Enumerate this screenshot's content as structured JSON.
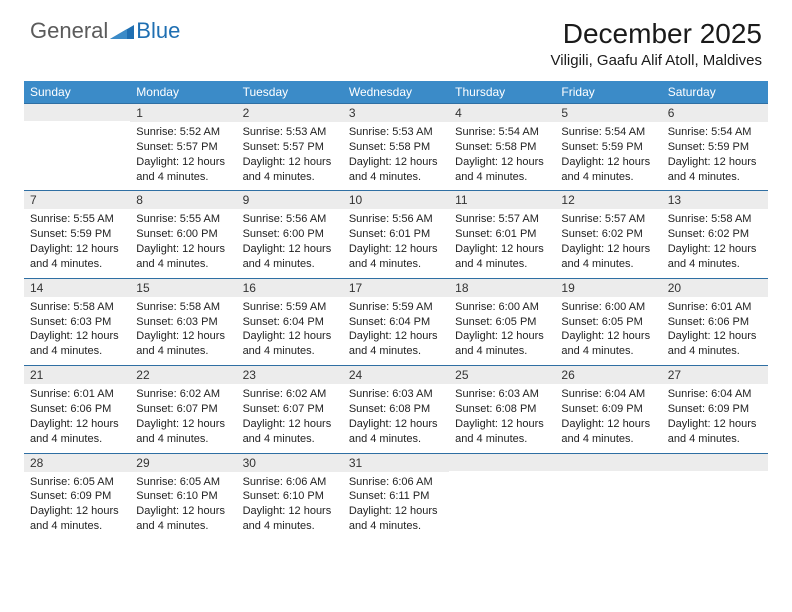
{
  "logo": {
    "general": "General",
    "blue": "Blue"
  },
  "title": "December 2025",
  "location": "Viligili, Gaafu Alif Atoll, Maldives",
  "colors": {
    "header_bg": "#3b8bc8",
    "header_text": "#ffffff",
    "daynum_bg": "#ececec",
    "border": "#2f6fa3",
    "body_text": "#222222",
    "logo_general": "#5b5b5b",
    "logo_blue": "#1f6fb2"
  },
  "weekdays": [
    "Sunday",
    "Monday",
    "Tuesday",
    "Wednesday",
    "Thursday",
    "Friday",
    "Saturday"
  ],
  "weeks": [
    [
      {
        "day": "",
        "sunrise": "",
        "sunset": "",
        "daylight": ""
      },
      {
        "day": "1",
        "sunrise": "Sunrise: 5:52 AM",
        "sunset": "Sunset: 5:57 PM",
        "daylight": "Daylight: 12 hours and 4 minutes."
      },
      {
        "day": "2",
        "sunrise": "Sunrise: 5:53 AM",
        "sunset": "Sunset: 5:57 PM",
        "daylight": "Daylight: 12 hours and 4 minutes."
      },
      {
        "day": "3",
        "sunrise": "Sunrise: 5:53 AM",
        "sunset": "Sunset: 5:58 PM",
        "daylight": "Daylight: 12 hours and 4 minutes."
      },
      {
        "day": "4",
        "sunrise": "Sunrise: 5:54 AM",
        "sunset": "Sunset: 5:58 PM",
        "daylight": "Daylight: 12 hours and 4 minutes."
      },
      {
        "day": "5",
        "sunrise": "Sunrise: 5:54 AM",
        "sunset": "Sunset: 5:59 PM",
        "daylight": "Daylight: 12 hours and 4 minutes."
      },
      {
        "day": "6",
        "sunrise": "Sunrise: 5:54 AM",
        "sunset": "Sunset: 5:59 PM",
        "daylight": "Daylight: 12 hours and 4 minutes."
      }
    ],
    [
      {
        "day": "7",
        "sunrise": "Sunrise: 5:55 AM",
        "sunset": "Sunset: 5:59 PM",
        "daylight": "Daylight: 12 hours and 4 minutes."
      },
      {
        "day": "8",
        "sunrise": "Sunrise: 5:55 AM",
        "sunset": "Sunset: 6:00 PM",
        "daylight": "Daylight: 12 hours and 4 minutes."
      },
      {
        "day": "9",
        "sunrise": "Sunrise: 5:56 AM",
        "sunset": "Sunset: 6:00 PM",
        "daylight": "Daylight: 12 hours and 4 minutes."
      },
      {
        "day": "10",
        "sunrise": "Sunrise: 5:56 AM",
        "sunset": "Sunset: 6:01 PM",
        "daylight": "Daylight: 12 hours and 4 minutes."
      },
      {
        "day": "11",
        "sunrise": "Sunrise: 5:57 AM",
        "sunset": "Sunset: 6:01 PM",
        "daylight": "Daylight: 12 hours and 4 minutes."
      },
      {
        "day": "12",
        "sunrise": "Sunrise: 5:57 AM",
        "sunset": "Sunset: 6:02 PM",
        "daylight": "Daylight: 12 hours and 4 minutes."
      },
      {
        "day": "13",
        "sunrise": "Sunrise: 5:58 AM",
        "sunset": "Sunset: 6:02 PM",
        "daylight": "Daylight: 12 hours and 4 minutes."
      }
    ],
    [
      {
        "day": "14",
        "sunrise": "Sunrise: 5:58 AM",
        "sunset": "Sunset: 6:03 PM",
        "daylight": "Daylight: 12 hours and 4 minutes."
      },
      {
        "day": "15",
        "sunrise": "Sunrise: 5:58 AM",
        "sunset": "Sunset: 6:03 PM",
        "daylight": "Daylight: 12 hours and 4 minutes."
      },
      {
        "day": "16",
        "sunrise": "Sunrise: 5:59 AM",
        "sunset": "Sunset: 6:04 PM",
        "daylight": "Daylight: 12 hours and 4 minutes."
      },
      {
        "day": "17",
        "sunrise": "Sunrise: 5:59 AM",
        "sunset": "Sunset: 6:04 PM",
        "daylight": "Daylight: 12 hours and 4 minutes."
      },
      {
        "day": "18",
        "sunrise": "Sunrise: 6:00 AM",
        "sunset": "Sunset: 6:05 PM",
        "daylight": "Daylight: 12 hours and 4 minutes."
      },
      {
        "day": "19",
        "sunrise": "Sunrise: 6:00 AM",
        "sunset": "Sunset: 6:05 PM",
        "daylight": "Daylight: 12 hours and 4 minutes."
      },
      {
        "day": "20",
        "sunrise": "Sunrise: 6:01 AM",
        "sunset": "Sunset: 6:06 PM",
        "daylight": "Daylight: 12 hours and 4 minutes."
      }
    ],
    [
      {
        "day": "21",
        "sunrise": "Sunrise: 6:01 AM",
        "sunset": "Sunset: 6:06 PM",
        "daylight": "Daylight: 12 hours and 4 minutes."
      },
      {
        "day": "22",
        "sunrise": "Sunrise: 6:02 AM",
        "sunset": "Sunset: 6:07 PM",
        "daylight": "Daylight: 12 hours and 4 minutes."
      },
      {
        "day": "23",
        "sunrise": "Sunrise: 6:02 AM",
        "sunset": "Sunset: 6:07 PM",
        "daylight": "Daylight: 12 hours and 4 minutes."
      },
      {
        "day": "24",
        "sunrise": "Sunrise: 6:03 AM",
        "sunset": "Sunset: 6:08 PM",
        "daylight": "Daylight: 12 hours and 4 minutes."
      },
      {
        "day": "25",
        "sunrise": "Sunrise: 6:03 AM",
        "sunset": "Sunset: 6:08 PM",
        "daylight": "Daylight: 12 hours and 4 minutes."
      },
      {
        "day": "26",
        "sunrise": "Sunrise: 6:04 AM",
        "sunset": "Sunset: 6:09 PM",
        "daylight": "Daylight: 12 hours and 4 minutes."
      },
      {
        "day": "27",
        "sunrise": "Sunrise: 6:04 AM",
        "sunset": "Sunset: 6:09 PM",
        "daylight": "Daylight: 12 hours and 4 minutes."
      }
    ],
    [
      {
        "day": "28",
        "sunrise": "Sunrise: 6:05 AM",
        "sunset": "Sunset: 6:09 PM",
        "daylight": "Daylight: 12 hours and 4 minutes."
      },
      {
        "day": "29",
        "sunrise": "Sunrise: 6:05 AM",
        "sunset": "Sunset: 6:10 PM",
        "daylight": "Daylight: 12 hours and 4 minutes."
      },
      {
        "day": "30",
        "sunrise": "Sunrise: 6:06 AM",
        "sunset": "Sunset: 6:10 PM",
        "daylight": "Daylight: 12 hours and 4 minutes."
      },
      {
        "day": "31",
        "sunrise": "Sunrise: 6:06 AM",
        "sunset": "Sunset: 6:11 PM",
        "daylight": "Daylight: 12 hours and 4 minutes."
      },
      {
        "day": "",
        "sunrise": "",
        "sunset": "",
        "daylight": ""
      },
      {
        "day": "",
        "sunrise": "",
        "sunset": "",
        "daylight": ""
      },
      {
        "day": "",
        "sunrise": "",
        "sunset": "",
        "daylight": ""
      }
    ]
  ]
}
